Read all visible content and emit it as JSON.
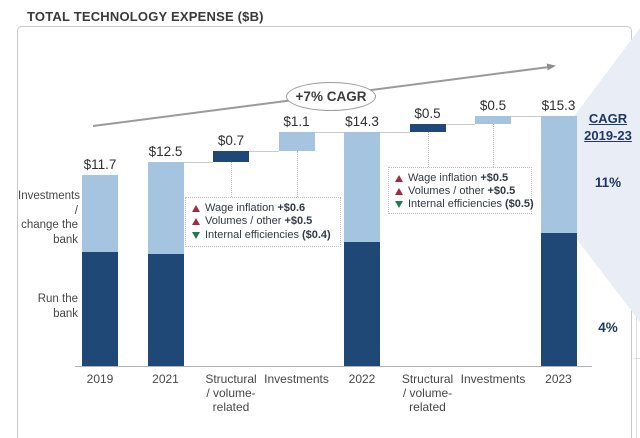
{
  "title": "TOTAL TECHNOLOGY EXPENSE ($B)",
  "colors": {
    "run_the_bank": "#1f4876",
    "investments": "#a5c4e0",
    "increase_marker": "#9e2b3e",
    "decrease_marker": "#217a52",
    "cagr_text": "#1f3864",
    "highlight_shape": "#e9edf6",
    "trend_arrow": "#999999"
  },
  "left_labels": {
    "investments_lines": [
      "Investments /",
      "change the",
      "bank"
    ],
    "run_lines": [
      "Run the",
      "bank"
    ]
  },
  "trend": {
    "label": "+7% CAGR"
  },
  "cagr_column": {
    "header_line1": "CAGR",
    "header_line2": "2019-23",
    "investments_value": "11%",
    "run_value": "4%"
  },
  "annotations": [
    {
      "rows": [
        {
          "marker": "triangle-up-icon",
          "direction": "up",
          "name": "Wage inflation",
          "value": "+$0.6"
        },
        {
          "marker": "triangle-up-icon",
          "direction": "up",
          "name": "Volumes / other",
          "value": "+$0.5"
        },
        {
          "marker": "triangle-down-icon",
          "direction": "down",
          "name": "Internal efficiencies",
          "value": "($0.4)"
        }
      ]
    },
    {
      "rows": [
        {
          "marker": "triangle-up-icon",
          "direction": "up",
          "name": "Wage inflation",
          "value": "+$0.5"
        },
        {
          "marker": "triangle-up-icon",
          "direction": "up",
          "name": "Volumes / other",
          "value": "+$0.5"
        },
        {
          "marker": "triangle-down-icon",
          "direction": "down",
          "name": "Internal efficiencies",
          "value": "($0.5)"
        }
      ]
    }
  ],
  "chart_data": {
    "type": "bar",
    "subtype": "stacked-waterfall",
    "title": "TOTAL TECHNOLOGY EXPENSE ($B)",
    "ylabel": "",
    "ylim": [
      0,
      16.5
    ],
    "grid": false,
    "categories": [
      "2019",
      "2021",
      "Structural / volume-related",
      "Investments",
      "2022",
      "Structural / volume-related",
      "Investments",
      "2023"
    ],
    "xlabel_lines": [
      [
        "2019"
      ],
      [
        "2021"
      ],
      [
        "Structural",
        "/ volume-",
        "related"
      ],
      [
        "Investments"
      ],
      [
        "2022"
      ],
      [
        "Structural",
        "/ volume-",
        "related"
      ],
      [
        "Investments"
      ],
      [
        "2023"
      ]
    ],
    "segments_legend": [
      {
        "name": "Run the bank",
        "color_key": "run_the_bank"
      },
      {
        "name": "Investments / change the bank",
        "color_key": "investments"
      }
    ],
    "bars": [
      {
        "category": "2019",
        "label": "$11.7",
        "kind": "total",
        "total": 11.7,
        "run_the_bank": 7.0,
        "investments": 4.7
      },
      {
        "category": "2021",
        "label": "$12.5",
        "kind": "total",
        "total": 12.5,
        "run_the_bank": 6.9,
        "investments": 5.6
      },
      {
        "category": "Structural / volume-related",
        "label": "$0.7",
        "kind": "delta",
        "value": 0.7,
        "start": 12.5,
        "end": 13.2,
        "segment": "run_the_bank"
      },
      {
        "category": "Investments",
        "label": "$1.1",
        "kind": "delta",
        "value": 1.1,
        "start": 13.2,
        "end": 14.3,
        "segment": "investments"
      },
      {
        "category": "2022",
        "label": "$14.3",
        "kind": "total",
        "total": 14.3,
        "run_the_bank": 7.6,
        "investments": 6.7
      },
      {
        "category": "Structural / volume-related",
        "label": "$0.5",
        "kind": "delta",
        "value": 0.5,
        "start": 14.3,
        "end": 14.8,
        "segment": "run_the_bank"
      },
      {
        "category": "Investments",
        "label": "$0.5",
        "kind": "delta",
        "value": 0.5,
        "start": 14.8,
        "end": 15.3,
        "segment": "investments"
      },
      {
        "category": "2023",
        "label": "$15.3",
        "kind": "total",
        "total": 15.3,
        "run_the_bank": 8.2,
        "investments": 7.1
      }
    ],
    "trend_annotation": "+7% CAGR",
    "cagr_2019_23": {
      "investments_change_the_bank": "11%",
      "run_the_bank": "4%"
    }
  }
}
